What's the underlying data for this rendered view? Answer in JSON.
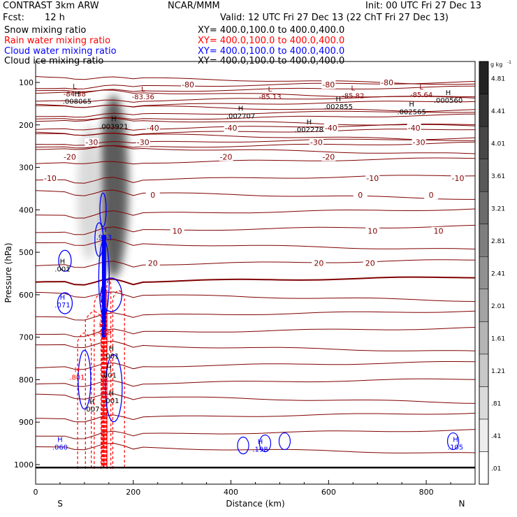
{
  "header": {
    "title_left": "CONTRAST 3km ARW",
    "center_org": "NCAR/MMM",
    "init": "Init: 00 UTC Fri 27 Dec 13",
    "fcst_label": "Fcst:",
    "fcst_value": "12 h",
    "valid": "Valid: 12 UTC Fri 27 Dec 13 (22 ChT Fri 27 Dec 13)"
  },
  "legend": [
    {
      "name": "Snow mixing ratio",
      "xy": "XY= 400.0,100.0 to 400.0,400.0",
      "color": "#000000"
    },
    {
      "name": "Rain water mixing ratio",
      "xy": "XY= 400.0,100.0 to 400.0,400.0",
      "color": "#ff0000"
    },
    {
      "name": "Cloud water mixing ratio",
      "xy": "XY= 400.0,100.0 to 400.0,400.0",
      "color": "#0000ff"
    },
    {
      "name": "Cloud ice mixing ratio",
      "xy": "XY= 400.0,100.0 to 400.0,400.0",
      "color": "#000000"
    }
  ],
  "chart_data": {
    "type": "heatmap",
    "xlabel": "Distance (km)",
    "ylabel": "Pressure (hPa)",
    "xlim": [
      0,
      900
    ],
    "ylim": [
      1050,
      50
    ],
    "x_ticks": [
      0,
      200,
      400,
      600,
      800
    ],
    "y_ticks": [
      100,
      200,
      300,
      400,
      500,
      600,
      700,
      800,
      900,
      1000
    ],
    "x_end_labels": {
      "left": "S",
      "right": "N"
    },
    "surface_pressure": 1007,
    "colorbar": {
      "unit": "g kg",
      "unit_exp": "-1",
      "ticks": [
        ".01",
        ".41",
        ".81",
        "1.21",
        "1.61",
        "2.01",
        "2.41",
        "2.81",
        "3.21",
        "3.61",
        "4.01",
        "4.41",
        "4.81"
      ],
      "color_min": "#ffffff",
      "color_max": "#222222"
    },
    "snow_shading": [
      {
        "x": 160,
        "p_top": 130,
        "p_bottom": 560,
        "peak": 4.5,
        "width_km": 30
      },
      {
        "x": 110,
        "p_top": 200,
        "p_bottom": 520,
        "peak": 1.0,
        "width_km": 25
      }
    ],
    "temperature_isotherms": [
      {
        "value": "-80",
        "p": 105,
        "label_x": 312
      },
      {
        "value": "-40",
        "p": 207,
        "label_x": 240
      },
      {
        "value": "-30",
        "p": 241,
        "label_x": 220
      },
      {
        "value": "-20",
        "p": 275,
        "label_x": 70
      },
      {
        "value": "-10",
        "p": 325,
        "label_x": 30
      },
      {
        "value": "0",
        "p": 365,
        "label_x": 240
      },
      {
        "value": "10",
        "p": 450,
        "label_x": 290
      },
      {
        "value": "20",
        "p": 525,
        "label_x": 240
      }
    ],
    "isotherm_labels_extra": [
      "-40",
      "-40",
      "-40",
      "-30",
      "-30",
      "-30",
      "-20",
      "-20",
      "-10",
      "-10",
      "0",
      "0",
      "10",
      "10",
      "20",
      "20",
      "-80",
      "-80"
    ],
    "extrema": [
      {
        "kind": "L",
        "value": "-84.38",
        "x": 80,
        "p": 118
      },
      {
        "kind": "L",
        "value": "-83.36",
        "x": 220,
        "p": 125
      },
      {
        "kind": "L",
        "value": "-85.13",
        "x": 480,
        "p": 125
      },
      {
        "kind": "L",
        "value": "-85.82",
        "x": 650,
        "p": 122
      },
      {
        "kind": "L",
        "value": "-85.64",
        "x": 790,
        "p": 120
      },
      {
        "kind": "H",
        "value": ".008065",
        "x": 85,
        "p": 135
      },
      {
        "kind": "H",
        "value": ".003921",
        "x": 160,
        "p": 195
      },
      {
        "kind": "H",
        "value": ".002707",
        "x": 420,
        "p": 170
      },
      {
        "kind": "H",
        "value": ".002278",
        "x": 560,
        "p": 202
      },
      {
        "kind": "H",
        "value": ".002855",
        "x": 620,
        "p": 148
      },
      {
        "kind": "H",
        "value": ".002565",
        "x": 770,
        "p": 160
      },
      {
        "kind": "H",
        "value": ".000560",
        "x": 845,
        "p": 133
      },
      {
        "kind": "H",
        "value": ".953",
        "x": 140,
        "p": 455
      },
      {
        "kind": "H",
        "value": ".001",
        "x": 55,
        "p": 530
      },
      {
        "kind": "H",
        "value": ".071",
        "x": 55,
        "p": 615
      },
      {
        "kind": "H",
        "value": "1.418",
        "x": 135,
        "p": 680
      },
      {
        "kind": "H",
        "value": ".001",
        "x": 155,
        "p": 735
      },
      {
        "kind": "H",
        "value": ".001",
        "x": 155,
        "p": 840
      },
      {
        "kind": "H",
        "value": ".001",
        "x": 150,
        "p": 780
      },
      {
        "kind": "H",
        "value": ".801",
        "x": 85,
        "p": 785
      },
      {
        "kind": "H",
        "value": ".007",
        "x": 115,
        "p": 860
      },
      {
        "kind": "H",
        "value": ".060",
        "x": 50,
        "p": 950
      },
      {
        "kind": "H",
        "value": ".198",
        "x": 460,
        "p": 955
      },
      {
        "kind": "H",
        "value": ".105",
        "x": 860,
        "p": 950
      }
    ]
  },
  "colors": {
    "isotherm": "#800000",
    "axis": "#000000",
    "rain": "#ff0000",
    "cloud_water": "#0000ff"
  }
}
